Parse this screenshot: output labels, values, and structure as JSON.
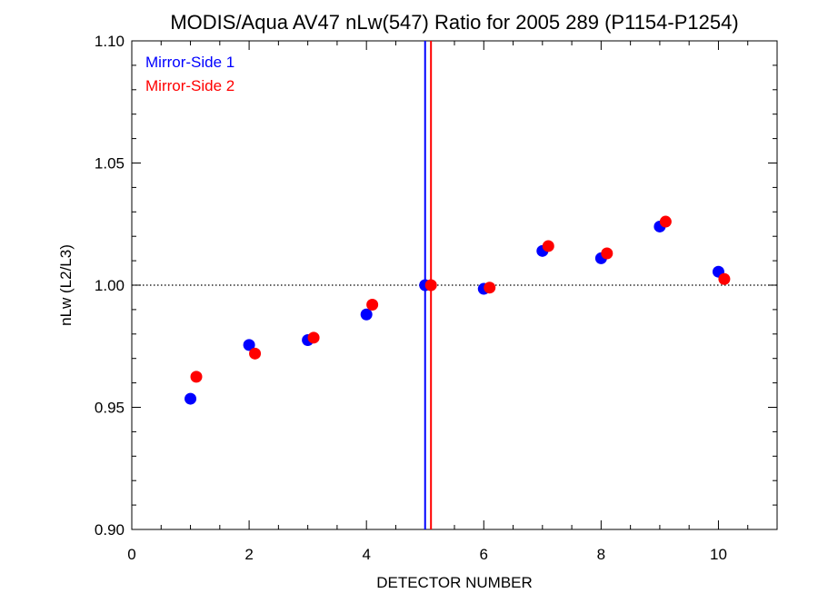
{
  "chart_data": {
    "type": "scatter",
    "title": "MODIS/Aqua AV47 nLw(547) Ratio for 2005 289 (P1154-P1254)",
    "xlabel": "DETECTOR NUMBER",
    "ylabel": "nLw (L2/L3)",
    "xlim": [
      0,
      11
    ],
    "ylim": [
      0.9,
      1.1
    ],
    "x_ticks": [
      0,
      2,
      4,
      6,
      8,
      10
    ],
    "x_tick_labels": [
      "0",
      "2",
      "4",
      "6",
      "8",
      "10"
    ],
    "y_ticks": [
      0.9,
      0.95,
      1.0,
      1.05,
      1.1
    ],
    "y_tick_labels": [
      "0.90",
      "0.95",
      "1.00",
      "1.05",
      "1.10"
    ],
    "reference_line": {
      "y": 1.0,
      "style": "dotted"
    },
    "vertical_lines": [
      {
        "x": 5.0,
        "color": "#0000ff"
      },
      {
        "x": 5.1,
        "color": "#ff0000"
      }
    ],
    "legend_position": "top-left",
    "series": [
      {
        "name": "Mirror-Side 1",
        "color": "#0000ff",
        "x": [
          1,
          2,
          3,
          4,
          5,
          6,
          7,
          8,
          9,
          10
        ],
        "y": [
          0.9535,
          0.9755,
          0.9775,
          0.988,
          1.0,
          0.9985,
          1.014,
          1.011,
          1.024,
          1.0055
        ]
      },
      {
        "name": "Mirror-Side 2",
        "color": "#ff0000",
        "x": [
          1.1,
          2.1,
          3.1,
          4.1,
          5.1,
          6.1,
          7.1,
          8.1,
          9.1,
          10.1
        ],
        "y": [
          0.9625,
          0.972,
          0.9785,
          0.992,
          1.0,
          0.999,
          1.016,
          1.013,
          1.026,
          1.0025
        ]
      }
    ]
  }
}
